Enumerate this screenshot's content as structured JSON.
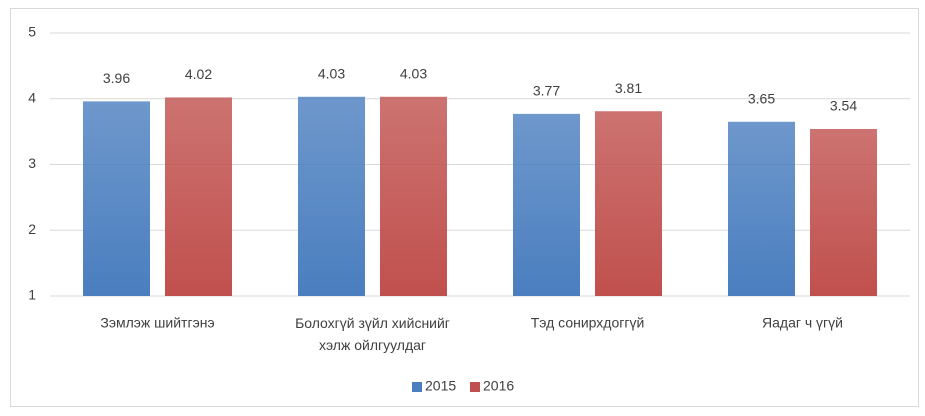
{
  "chart_data": {
    "type": "bar",
    "categories": [
      "Зэмлэж шийтгэнэ",
      "Болохгүй зүйл хийснийг хэлж ойлгуулдаг",
      "Тэд сонирхдоггүй",
      "Яадаг ч үгүй"
    ],
    "series": [
      {
        "name": "2015",
        "color": "#4a7ebf",
        "values": [
          3.96,
          4.03,
          3.77,
          3.65
        ]
      },
      {
        "name": "2016",
        "color": "#c0504d",
        "values": [
          4.02,
          4.03,
          3.81,
          3.54
        ]
      }
    ],
    "ylim": [
      1,
      5
    ],
    "yticks": [
      1,
      2,
      3,
      4,
      5
    ],
    "grid": true,
    "legend": "bottom"
  }
}
